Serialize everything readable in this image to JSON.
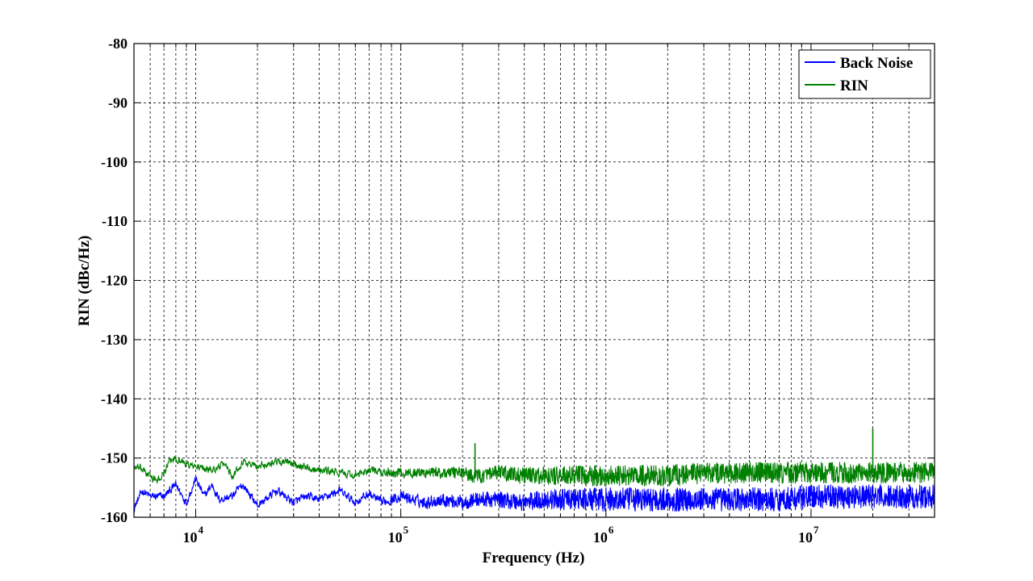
{
  "chart_data": {
    "type": "line",
    "title": "",
    "xlabel": "Frequency (Hz)",
    "ylabel": "RIN (dBc/Hz)",
    "xscale": "log",
    "xlim": [
      5000,
      40000000
    ],
    "ylim": [
      -160,
      -80
    ],
    "grid": true,
    "legend_position": "top-right",
    "x_ticks": [
      {
        "value": 10000,
        "base": "10",
        "exp": "4"
      },
      {
        "value": 100000,
        "base": "10",
        "exp": "5"
      },
      {
        "value": 1000000,
        "base": "10",
        "exp": "6"
      },
      {
        "value": 10000000,
        "base": "10",
        "exp": "7"
      }
    ],
    "y_ticks": [
      {
        "value": -80,
        "label": "-80"
      },
      {
        "value": -90,
        "label": "-90"
      },
      {
        "value": -100,
        "label": "-100"
      },
      {
        "value": -110,
        "label": "-110"
      },
      {
        "value": -120,
        "label": "-120"
      },
      {
        "value": -130,
        "label": "-130"
      },
      {
        "value": -140,
        "label": "-140"
      },
      {
        "value": -150,
        "label": "-150"
      },
      {
        "value": -160,
        "label": "-160"
      }
    ],
    "series": [
      {
        "name": "Back Noise",
        "color": "#0000ff",
        "noise_db": 2.0,
        "x": [
          5000,
          5500,
          6000,
          7000,
          8000,
          9000,
          10000,
          11000,
          12000,
          13000,
          15000,
          17000,
          20000,
          25000,
          30000,
          35000,
          40000,
          50000,
          60000,
          70000,
          80000,
          100000,
          130000,
          160000,
          200000,
          230000,
          260000,
          300000,
          400000,
          500000,
          700000,
          1000000,
          2000000,
          3000000,
          5000000,
          7000000,
          10000000,
          20000000,
          30000000,
          40000000
        ],
        "y": [
          -158.5,
          -155.5,
          -156.5,
          -156.5,
          -154.5,
          -157.5,
          -153.5,
          -156.5,
          -154.5,
          -157.0,
          -156.5,
          -154.5,
          -158.0,
          -155.5,
          -157.5,
          -156.5,
          -157.0,
          -155.5,
          -157.5,
          -156.0,
          -157.5,
          -156.5,
          -157.5,
          -157.0,
          -157.5,
          -157.0,
          -157.0,
          -157.0,
          -157.5,
          -157.0,
          -157.0,
          -157.0,
          -157.0,
          -157.0,
          -157.0,
          -157.0,
          -156.5,
          -156.5,
          -156.5,
          -156.5
        ]
      },
      {
        "name": "RIN",
        "color": "#008000",
        "noise_db": 1.8,
        "x": [
          5000,
          5500,
          6000,
          6500,
          7000,
          7500,
          8000,
          9000,
          10000,
          12000,
          14000,
          15000,
          17000,
          20000,
          25000,
          30000,
          35000,
          40000,
          50000,
          60000,
          70000,
          80000,
          100000,
          130000,
          160000,
          200000,
          230000,
          260000,
          300000,
          400000,
          500000,
          700000,
          1000000,
          2000000,
          3000000,
          5000000,
          7000000,
          10000000,
          20000000,
          30000000,
          40000000
        ],
        "y": [
          -151.5,
          -152.0,
          -153.0,
          -154.0,
          -152.5,
          -150.5,
          -150.0,
          -151.0,
          -151.5,
          -152.0,
          -151.0,
          -153.0,
          -150.5,
          -151.5,
          -150.5,
          -151.0,
          -151.5,
          -152.0,
          -152.5,
          -153.0,
          -152.0,
          -152.5,
          -152.5,
          -152.5,
          -152.5,
          -152.5,
          -153.0,
          -153.0,
          -152.5,
          -153.0,
          -153.0,
          -153.0,
          -153.0,
          -153.0,
          -152.5,
          -152.5,
          -152.5,
          -152.5,
          -152.5,
          -152.5,
          -152.5
        ],
        "spikes": [
          {
            "x": 230000,
            "y": -147.5
          },
          {
            "x": 20000000,
            "y": -145.0
          }
        ]
      }
    ]
  }
}
